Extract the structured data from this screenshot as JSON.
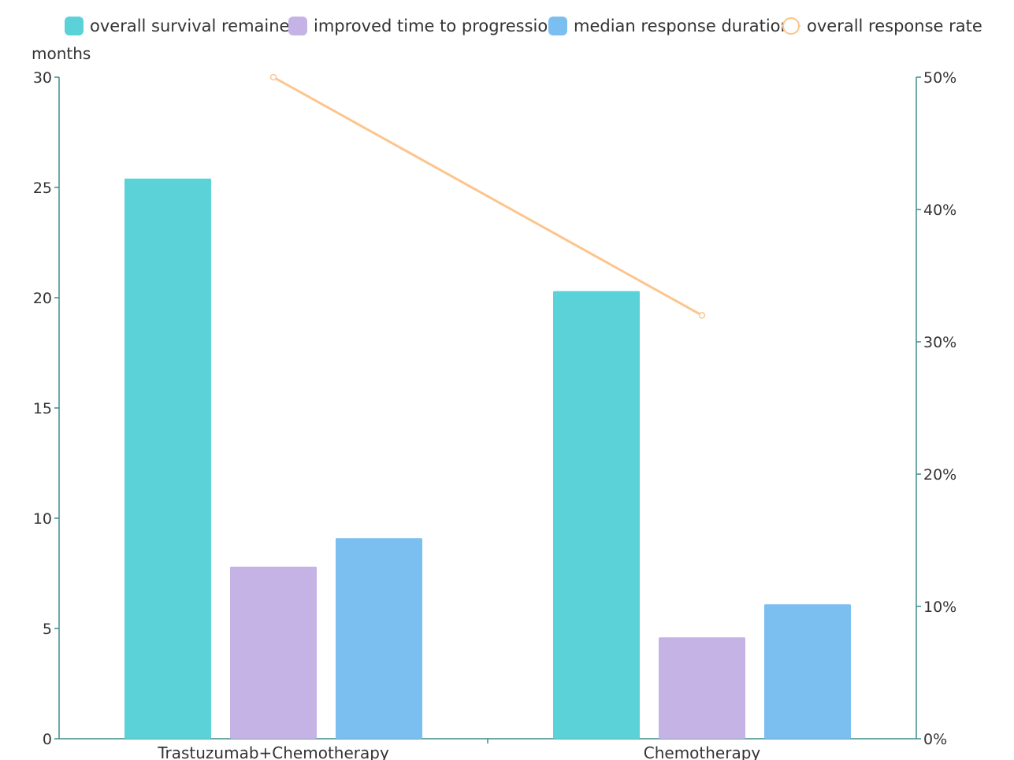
{
  "chart_data": {
    "type": "bar",
    "categories": [
      "Trastuzumab+Chemotherapy",
      "Chemotherapy"
    ],
    "series": [
      {
        "name": "overall survival remained",
        "type": "bar",
        "axis": "left",
        "values": [
          25.4,
          20.3
        ],
        "color": "#5ad2d8"
      },
      {
        "name": "improved time to progression",
        "type": "bar",
        "axis": "left",
        "values": [
          7.8,
          4.6
        ],
        "color": "#c5b3e6"
      },
      {
        "name": "median response duration",
        "type": "bar",
        "axis": "left",
        "values": [
          9.1,
          6.1
        ],
        "color": "#7bbff1"
      },
      {
        "name": "overall response rate",
        "type": "line",
        "axis": "right",
        "values": [
          50,
          32
        ],
        "color": "#fcc58d"
      }
    ],
    "ylabel": "months",
    "ylim": [
      0,
      30
    ],
    "yticks": [
      "0",
      "5",
      "10",
      "15",
      "20",
      "25",
      "30"
    ],
    "y2lim": [
      0,
      50
    ],
    "y2ticks": [
      "0%",
      "10%",
      "20%",
      "30%",
      "40%",
      "50%"
    ],
    "legend": "top",
    "grid": false,
    "axis_color": "#3f8b8b"
  }
}
